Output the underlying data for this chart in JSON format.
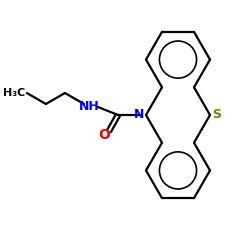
{
  "bg_color": "#ffffff",
  "bond_color": "#000000",
  "N_color": "#0000ff",
  "S_color": "#808000",
  "O_color": "#ff0000",
  "H3C_label": "H₃C",
  "NH_label": "NH",
  "N_label": "N",
  "S_label": "S",
  "O_label": "O",
  "figsize": [
    2.5,
    2.5
  ],
  "dpi": 100,
  "ring_r": 32
}
